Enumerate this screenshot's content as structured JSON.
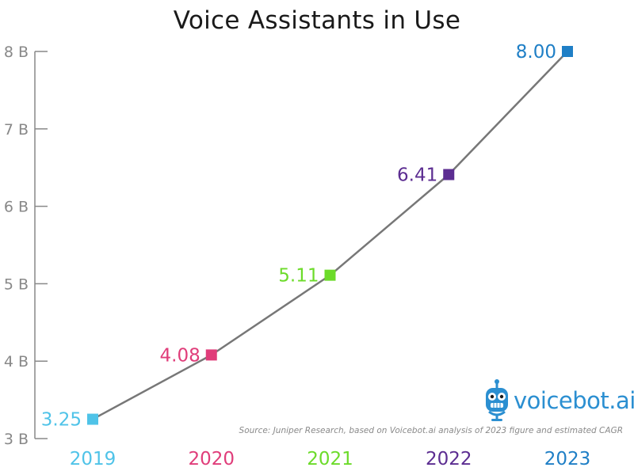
{
  "chart_data": {
    "type": "line",
    "title": "Voice Assistants in Use",
    "categories": [
      "2019",
      "2020",
      "2021",
      "2022",
      "2023"
    ],
    "values": [
      3.25,
      4.08,
      5.11,
      6.41,
      8.0
    ],
    "data_labels": [
      "3.25",
      "4.08",
      "5.11",
      "6.41",
      "8.00"
    ],
    "point_colors": [
      "#4fc3e8",
      "#e03d7a",
      "#6cdb2a",
      "#5c2d91",
      "#1f7fc6"
    ],
    "line_color": "#777777",
    "ylim": [
      3,
      8
    ],
    "yticks": [
      3,
      4,
      5,
      6,
      7,
      8
    ],
    "ytick_labels": [
      "3 B",
      "4 B",
      "5 B",
      "6 B",
      "7 B",
      "8 B"
    ],
    "xlabel": "",
    "ylabel": "",
    "grid": false,
    "legend": "none",
    "source": "Source: Juniper Research, based on Voicebot.ai analysis of 2023 figure and estimated CAGR"
  },
  "brand": {
    "name": "voicebot.ai",
    "trademark": "™",
    "icon": "robot-microphone-icon",
    "color": "#2b8fd1"
  }
}
